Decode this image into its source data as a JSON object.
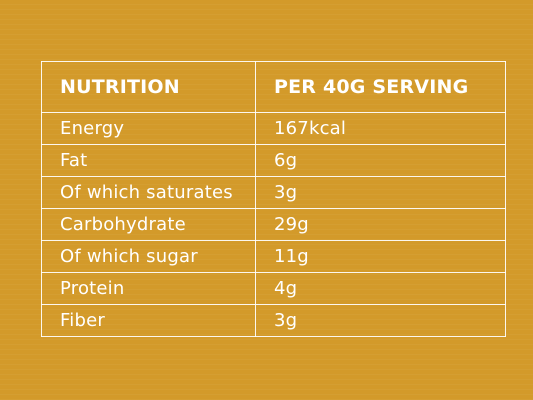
{
  "table": {
    "headers": {
      "nutrient": "NUTRITION",
      "amount": "PER 40G SERVING"
    },
    "rows": [
      {
        "nutrient": "Energy",
        "amount": "167kcal"
      },
      {
        "nutrient": "Fat",
        "amount": "6g"
      },
      {
        "nutrient": "Of which saturates",
        "amount": "3g"
      },
      {
        "nutrient": "Carbohydrate",
        "amount": "29g"
      },
      {
        "nutrient": "Of which sugar",
        "amount": "11g"
      },
      {
        "nutrient": "Protein",
        "amount": "4g"
      },
      {
        "nutrient": "Fiber",
        "amount": "3g"
      }
    ]
  },
  "colors": {
    "background": "#d39a2a",
    "text": "#ffffff",
    "border": "#ffffff"
  }
}
